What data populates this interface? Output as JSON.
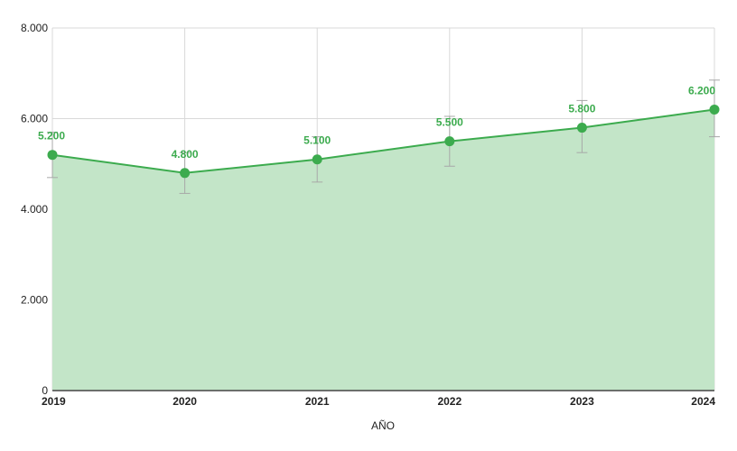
{
  "chart_data": {
    "type": "area",
    "title": "",
    "xlabel": "AÑO",
    "ylabel": "",
    "x": [
      "2019",
      "2020",
      "2021",
      "2022",
      "2023",
      "2024"
    ],
    "series": [
      {
        "values": [
          5200,
          4800,
          5100,
          5500,
          5800,
          6200
        ],
        "value_labels": [
          "5.200",
          "4.800",
          "5.100",
          "5.500",
          "5.800",
          "6.200"
        ],
        "error_bars": [
          [
            4700,
            5700
          ],
          [
            4350,
            5250
          ],
          [
            4600,
            5600
          ],
          [
            4950,
            6050
          ],
          [
            5250,
            6400
          ],
          [
            5600,
            6850
          ]
        ],
        "color": "#3cab4e",
        "fill_color": "#c3e5c8"
      }
    ],
    "ylim": [
      0,
      8000
    ],
    "yticks": [
      0,
      2000,
      4000,
      6000,
      8000
    ],
    "ytick_labels": [
      "0",
      "2.000",
      "4.000",
      "6.000",
      "8.000"
    ],
    "grid": true,
    "legend": "none"
  }
}
